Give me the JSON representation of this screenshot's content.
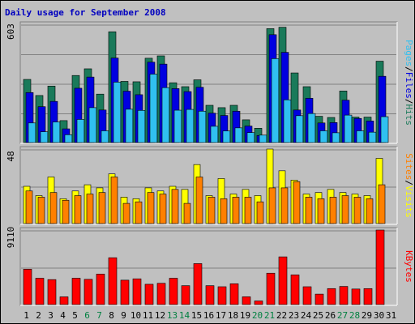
{
  "chart_data": {
    "type": "bar",
    "title": "Daily usage for September 2008",
    "colors": {
      "hits": "#1a7a5a",
      "files": "#0000e0",
      "pages": "#30c0f0",
      "visits": "#ffff00",
      "sites": "#ff8000",
      "kbytes": "#ff0000",
      "weekday_label": "#000000",
      "weekend_label": "#008040"
    },
    "days": [
      "1",
      "2",
      "3",
      "4",
      "5",
      "6",
      "7",
      "8",
      "9",
      "10",
      "11",
      "12",
      "13",
      "14",
      "15",
      "16",
      "17",
      "18",
      "19",
      "20",
      "21",
      "22",
      "23",
      "24",
      "25",
      "26",
      "27",
      "28",
      "29",
      "30",
      "31"
    ],
    "weekend_days": [
      "6",
      "7",
      "13",
      "14",
      "20",
      "21",
      "27",
      "28"
    ],
    "panels": [
      {
        "id": "hits-files-pages",
        "ymax_label": "603",
        "side_label": [
          "Pages",
          "Files",
          "Hits"
        ],
        "series": [
          {
            "name": "Hits",
            "values": [
              322,
              240,
              288,
              112,
              342,
              376,
              247,
              565,
              312,
              310,
              430,
              442,
              305,
              285,
              320,
              190,
              178,
              190,
              116,
              73,
              581,
              588,
              355,
              285,
              134,
              128,
              263,
              130,
              130,
              415,
              0
            ]
          },
          {
            "name": "Files",
            "values": [
              255,
              183,
              210,
              70,
              277,
              334,
              166,
              431,
              262,
              244,
              410,
              400,
              275,
              260,
              282,
              150,
              138,
              160,
              84,
              36,
              550,
              460,
              166,
              226,
              100,
              102,
              216,
              123,
              110,
              338,
              0
            ]
          },
          {
            "name": "Pages",
            "values": [
              100,
              55,
              105,
              40,
              118,
              178,
              60,
              308,
              170,
              164,
              349,
              280,
              165,
              169,
              160,
              83,
              59,
              75,
              51,
              38,
              428,
              218,
              137,
              148,
              60,
              50,
              140,
              60,
              53,
              132,
              0
            ]
          }
        ]
      },
      {
        "id": "visits-sites",
        "ymax_label": "48",
        "side_label": [
          "Sites",
          "Visits"
        ],
        "series": [
          {
            "name": "Visits",
            "values": [
              24,
              18,
              30,
              16,
              21,
              25,
              23,
              32,
              17,
              16,
              23,
              21,
              24,
              22,
              38,
              18,
              29,
              19,
              22,
              18,
              48,
              34,
              28,
              19,
              20,
              22,
              20,
              19,
              18,
              42,
              0
            ]
          },
          {
            "name": "Sites",
            "values": [
              21,
              17,
              20,
              15,
              18,
              19,
              20,
              30,
              13,
              14,
              20,
              19,
              22,
              13,
              30,
              17,
              16,
              17,
              17,
              14,
              23,
              23,
              27,
              17,
              16,
              17,
              18,
              17,
              16,
              25,
              0
            ]
          }
        ]
      },
      {
        "id": "kbytes",
        "ymax_label": "9110",
        "side_label": [
          "KBytes"
        ],
        "series": [
          {
            "name": "KBytes",
            "values": [
              4320,
              3220,
              3054,
              945,
              3222,
              3086,
              3728,
              5728,
              2983,
              3147,
              2482,
              2600,
              3219,
              2310,
              5007,
              2310,
              2180,
              2546,
              950,
              440,
              3838,
              5833,
              3627,
              2180,
              1277,
              1955,
              2218,
              1900,
              1952,
              9110,
              0
            ]
          }
        ]
      }
    ]
  }
}
